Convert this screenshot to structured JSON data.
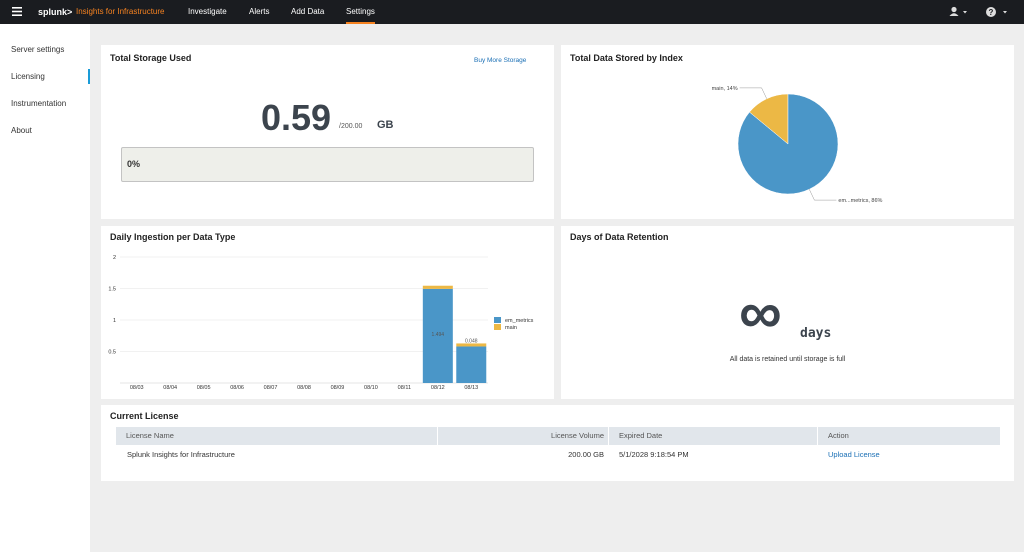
{
  "nav": {
    "logo": "splunk>",
    "product": "Insights for Infrastructure",
    "items": [
      "Investigate",
      "Alerts",
      "Add Data",
      "Settings"
    ]
  },
  "sidebar": {
    "items": [
      "Server settings",
      "Licensing",
      "Instrumentation",
      "About"
    ]
  },
  "storage": {
    "title": "Total Storage Used",
    "link": "Buy More Storage",
    "value": "0.59",
    "limit": "/200.00",
    "unit": "GB",
    "progress": "0%"
  },
  "chart_data": [
    {
      "type": "pie",
      "title": "Total Data Stored by Index",
      "values": [
        14,
        86
      ],
      "value_labels": [
        "main, 14%",
        "em...metrics, 86%"
      ],
      "colors": [
        "#ecb845",
        "#4a96c8"
      ]
    },
    {
      "type": "bar",
      "title": "Daily Ingestion per Data Type",
      "stacked": true,
      "categories": [
        "08/03",
        "08/04",
        "08/05",
        "08/06",
        "08/07",
        "08/08",
        "08/09",
        "08/10",
        "08/11",
        "08/12",
        "08/13"
      ],
      "series": [
        {
          "name": "em_metrics",
          "color": "#4a96c8",
          "values": [
            null,
            null,
            null,
            null,
            null,
            null,
            null,
            null,
            null,
            1.494,
            0.58
          ],
          "value_labels": [
            null,
            null,
            null,
            null,
            null,
            null,
            null,
            null,
            null,
            "1.494",
            null
          ]
        },
        {
          "name": "main",
          "color": "#ecb845",
          "values": [
            null,
            null,
            null,
            null,
            null,
            null,
            null,
            null,
            null,
            0.05,
            0.048
          ],
          "value_labels": [
            null,
            null,
            null,
            null,
            null,
            null,
            null,
            null,
            null,
            null,
            "0.048"
          ]
        }
      ],
      "ylim": [
        0,
        2
      ],
      "yticks": [
        0.5,
        1,
        1.5,
        2
      ],
      "grid": true
    }
  ],
  "retention": {
    "title": "Days of Data Retention",
    "symbol": "∞",
    "unit": "days",
    "note": "All data is retained until storage is full"
  },
  "license": {
    "title": "Current License",
    "headers": [
      "License Name",
      "License Volume",
      "Expired Date",
      "Action"
    ],
    "rows": [
      [
        "Splunk Insights for Infrastructure",
        "200.00 GB",
        "5/1/2028 9:18:54 PM",
        "Upload License"
      ]
    ]
  }
}
